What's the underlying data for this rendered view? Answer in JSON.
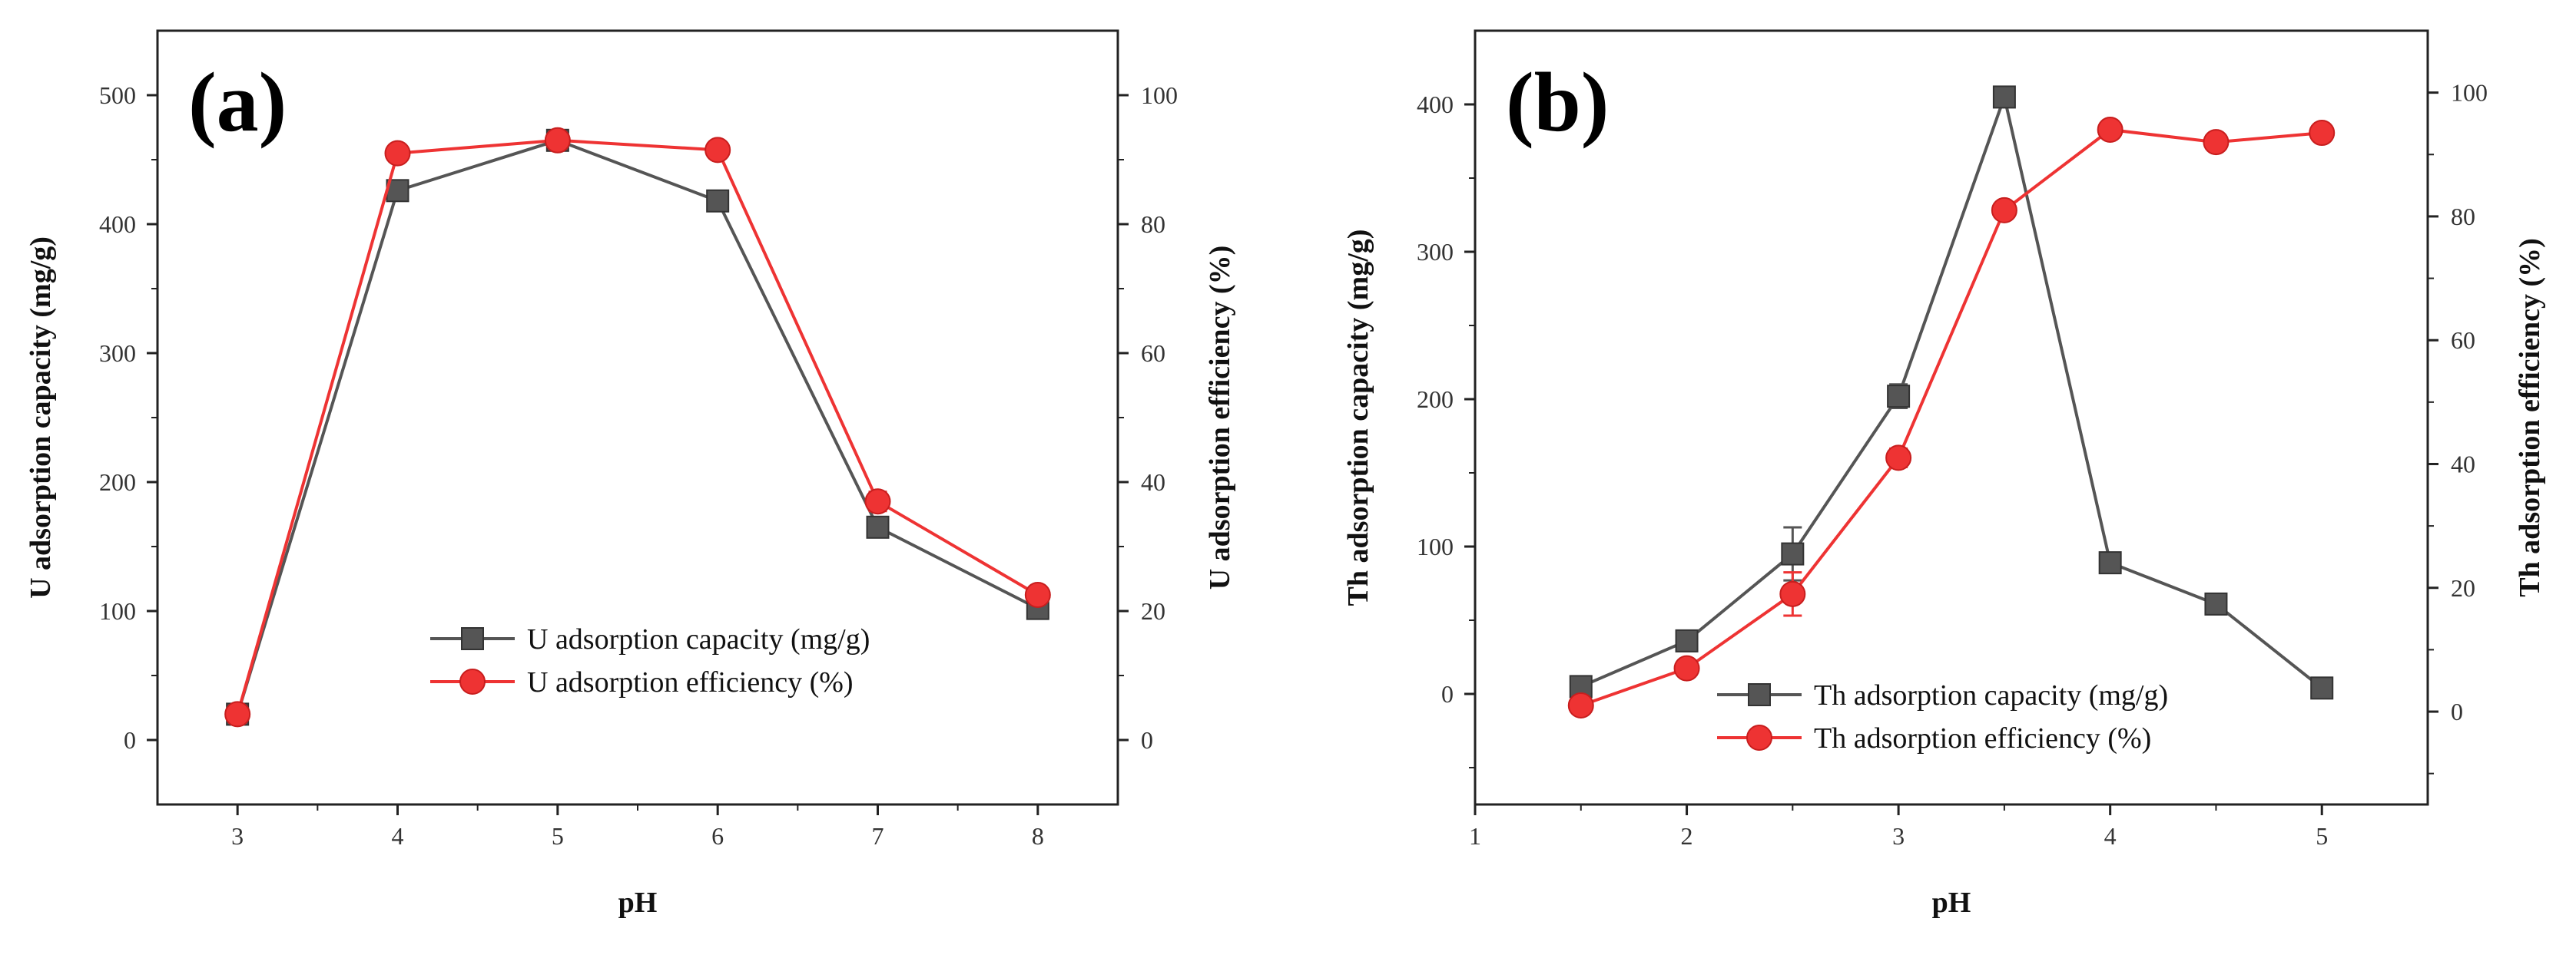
{
  "chart_data": [
    {
      "type": "line",
      "panel_label": "(a)",
      "xlabel": "pH",
      "ylabel_left": "U adsorption capacity (mg/g)",
      "ylabel_right": "U adsorption efficiency (%)",
      "xlim": [
        2.5,
        8.5
      ],
      "ylim_left": [
        -50,
        550
      ],
      "ylim_right": [
        -10,
        110
      ],
      "xticks": [
        3,
        4,
        5,
        6,
        7,
        8
      ],
      "yticks_left": [
        0,
        100,
        200,
        300,
        400,
        500
      ],
      "yticks_right": [
        0,
        20,
        40,
        60,
        80,
        100
      ],
      "legend_position": "lower-center",
      "series": [
        {
          "name": "U adsorption capacity (mg/g)",
          "axis": "left",
          "marker": "square",
          "color": "#555555",
          "x": [
            3,
            4,
            5,
            6,
            7,
            8
          ],
          "y": [
            20,
            426,
            465,
            418,
            165,
            102
          ],
          "err": [
            3,
            4,
            4,
            5,
            6,
            5
          ]
        },
        {
          "name": "U adsorption efficiency (%)",
          "axis": "right",
          "marker": "circle",
          "color": "#ee3333",
          "x": [
            3,
            4,
            5,
            6,
            7,
            8
          ],
          "y": [
            4,
            91,
            93,
            91.5,
            37,
            22.5
          ],
          "err": [
            1,
            1,
            1,
            1,
            1.5,
            1
          ]
        }
      ]
    },
    {
      "type": "line",
      "panel_label": "(b)",
      "xlabel": "pH",
      "ylabel_left": "Th adsorption capacity (mg/g)",
      "ylabel_right": "Th adsorption efficiency (%)",
      "xlim": [
        1,
        5.5
      ],
      "ylim_left": [
        -75,
        450
      ],
      "ylim_right": [
        -15,
        110
      ],
      "xticks": [
        1,
        2,
        3,
        4,
        5
      ],
      "yticks_left": [
        0,
        100,
        200,
        300,
        400
      ],
      "yticks_right": [
        0,
        20,
        40,
        60,
        80,
        100
      ],
      "legend_position": "lower-center",
      "series": [
        {
          "name": "Th adsorption capacity (mg/g)",
          "axis": "left",
          "marker": "square",
          "color": "#555555",
          "x": [
            1.5,
            2,
            2.5,
            3,
            3.5,
            4,
            4.5,
            5
          ],
          "y": [
            5,
            36,
            95,
            202,
            405,
            89,
            61,
            4
          ],
          "err": [
            3,
            3,
            18,
            8,
            3,
            3,
            3,
            2
          ]
        },
        {
          "name": "Th adsorption efficiency (%)",
          "axis": "right",
          "marker": "circle",
          "color": "#ee3333",
          "x": [
            1.5,
            2,
            2.5,
            3,
            3.5,
            4,
            4.5,
            5
          ],
          "y": [
            1,
            7,
            19,
            41,
            81,
            94,
            92,
            93.5
          ],
          "err": [
            0.8,
            0.8,
            3.5,
            1.5,
            0.8,
            0.8,
            0.8,
            0.8
          ]
        }
      ]
    }
  ]
}
